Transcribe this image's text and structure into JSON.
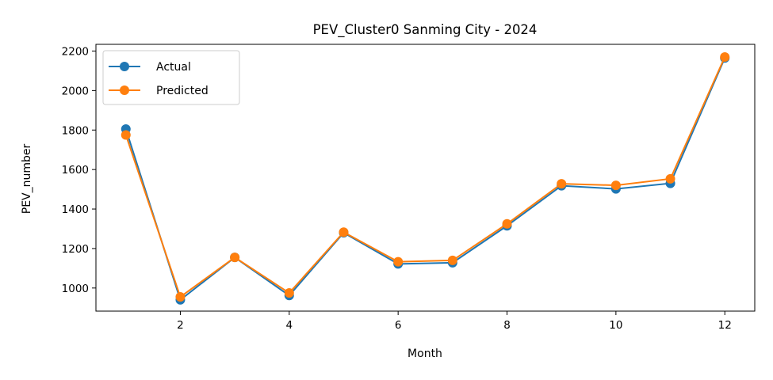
{
  "chart_data": {
    "type": "line",
    "title": "PEV_Cluster0 Sanming City - 2024",
    "xlabel": "Month",
    "ylabel": "PEV_number",
    "x": [
      1,
      2,
      3,
      4,
      5,
      6,
      7,
      8,
      9,
      10,
      11,
      12
    ],
    "xlim": [
      0.45,
      12.55
    ],
    "ylim": [
      883,
      2234
    ],
    "x_ticks": [
      2,
      4,
      6,
      8,
      10,
      12
    ],
    "y_ticks": [
      1000,
      1200,
      1400,
      1600,
      1800,
      2000,
      2200
    ],
    "grid": false,
    "legend_position": "top-left",
    "series": [
      {
        "name": "Actual",
        "color": "#1f77b4",
        "marker": "circle",
        "values": [
          1805,
          940,
          1155,
          962,
          1280,
          1122,
          1128,
          1315,
          1518,
          1502,
          1530,
          2165
        ]
      },
      {
        "name": "Predicted",
        "color": "#ff7f0e",
        "marker": "circle",
        "values": [
          1775,
          955,
          1155,
          975,
          1283,
          1133,
          1140,
          1325,
          1528,
          1520,
          1553,
          2170
        ]
      }
    ]
  }
}
